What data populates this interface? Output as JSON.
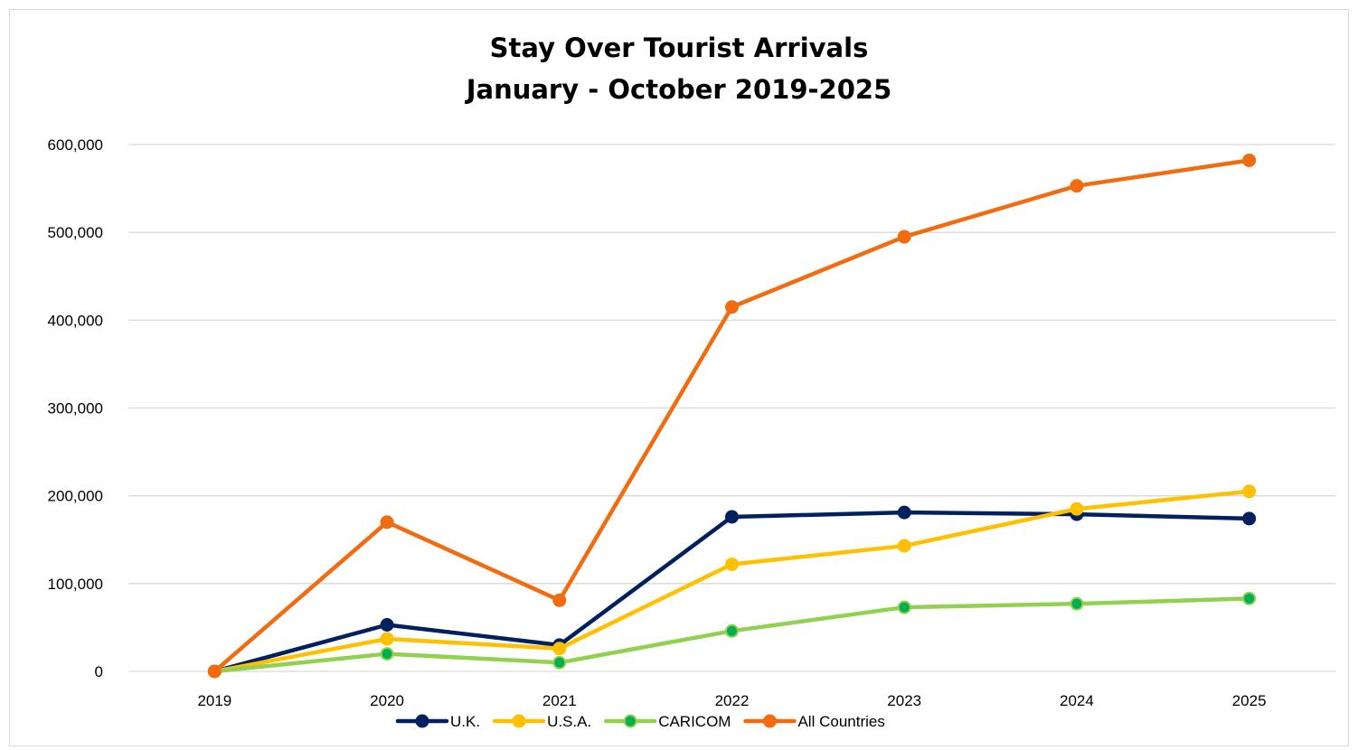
{
  "chart_data": {
    "type": "line",
    "title": "Stay Over Tourist Arrivals",
    "subtitle": "January - October 2019-2025",
    "xlabel": "",
    "ylabel": "",
    "categories": [
      "2019",
      "2020",
      "2021",
      "2022",
      "2023",
      "2024",
      "2025"
    ],
    "ylim": [
      0,
      600000
    ],
    "yticks": [
      0,
      100000,
      200000,
      300000,
      400000,
      500000,
      600000
    ],
    "ytick_labels": [
      "0",
      "100,000",
      "200,000",
      "300,000",
      "400,000",
      "500,000",
      "600,000"
    ],
    "grid": "horizontal",
    "legend_position": "bottom",
    "series": [
      {
        "name": "U.K.",
        "color": "#002060",
        "marker_fill": "#002060",
        "values": [
          0,
          53000,
          30000,
          176000,
          181000,
          179000,
          174000
        ]
      },
      {
        "name": "U.S.A.",
        "color": "#FFC000",
        "marker_fill": "#FFC000",
        "values": [
          0,
          37000,
          26000,
          122000,
          143000,
          185000,
          205000
        ]
      },
      {
        "name": "CARICOM",
        "color": "#92D050",
        "marker_fill": "#00B050",
        "values": [
          0,
          20000,
          10000,
          46000,
          73000,
          77000,
          83000
        ]
      },
      {
        "name": "All Countries",
        "color": "#F26B0F",
        "marker_fill": "#F26B0F",
        "values": [
          0,
          170000,
          81000,
          415000,
          495000,
          553000,
          582000
        ]
      }
    ]
  }
}
